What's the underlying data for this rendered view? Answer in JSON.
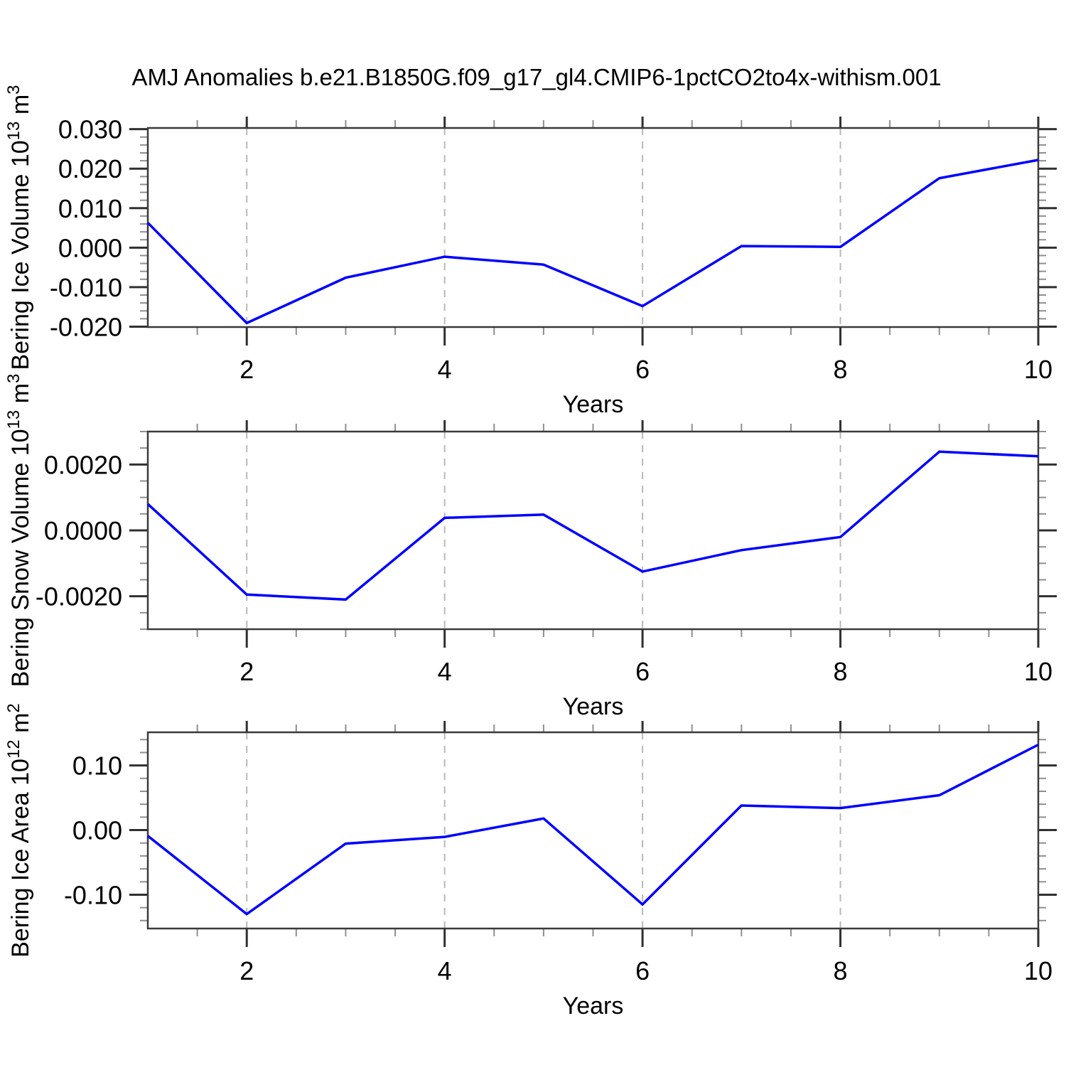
{
  "title": "AMJ Anomalies b.e21.B1850G.f09_g17_gl4.CMIP6-1pctCO2to4x-withism.001",
  "colors": {
    "line": "#0000ff",
    "gridline": "#b8b8b8",
    "frame": "#3a3a3a",
    "major_tick": "#303030",
    "minor_tick": "#8f8f8f",
    "text": "#000000",
    "background": "#ffffff"
  },
  "x_axis": {
    "label": "Years",
    "min": 1,
    "max": 10,
    "major_ticks": [
      2,
      4,
      6,
      8,
      10
    ],
    "tick_labels": [
      "2",
      "4",
      "6",
      "8",
      "10"
    ],
    "minor_step": 0.5,
    "gridlines": [
      2,
      4,
      6,
      8
    ]
  },
  "chart_data": [
    {
      "id": "bering-ice-volume",
      "type": "line",
      "ylabel": "Bering Ice Volume 10^13 m^3",
      "ylabel_parts": [
        {
          "t": "Bering Ice Volume 10"
        },
        {
          "t": "13",
          "sup": true
        },
        {
          "t": " m"
        },
        {
          "t": "3",
          "sup": true
        }
      ],
      "xlabel": "Years",
      "x": [
        1,
        2,
        3,
        4,
        5,
        6,
        7,
        8,
        9,
        10
      ],
      "y": [
        0.0063,
        -0.0191,
        -0.0076,
        -0.0023,
        -0.0043,
        -0.0148,
        0.0004,
        0.0002,
        0.0176,
        0.0222
      ],
      "ylim": [
        -0.0201,
        0.0303
      ],
      "yticks": [
        {
          "v": 0.03,
          "label": "0.030"
        },
        {
          "v": 0.02,
          "label": "0.020"
        },
        {
          "v": 0.01,
          "label": "0.010"
        },
        {
          "v": 0.0,
          "label": "0.000"
        },
        {
          "v": -0.01,
          "label": "-0.010"
        },
        {
          "v": -0.02,
          "label": "-0.020"
        }
      ],
      "yminor_step": 0.002
    },
    {
      "id": "bering-snow-volume",
      "type": "line",
      "ylabel": "Bering Snow Volume 10^13 m^3",
      "ylabel_parts": [
        {
          "t": "Bering Snow Volume 10"
        },
        {
          "t": "13",
          "sup": true
        },
        {
          "t": " m"
        },
        {
          "t": "3",
          "sup": true
        }
      ],
      "xlabel": "Years",
      "x": [
        1,
        2,
        3,
        4,
        5,
        6,
        7,
        8,
        9,
        10
      ],
      "y": [
        0.0008,
        -0.00195,
        -0.0021,
        0.00038,
        0.00048,
        -0.00125,
        -0.0006,
        -0.0002,
        0.00239,
        0.00225
      ],
      "ylim": [
        -0.003,
        0.003
      ],
      "yticks": [
        {
          "v": 0.002,
          "label": "0.0020"
        },
        {
          "v": 0.0,
          "label": "0.0000"
        },
        {
          "v": -0.002,
          "label": "-0.0020"
        }
      ],
      "yminor_step": 0.0005
    },
    {
      "id": "bering-ice-area",
      "type": "line",
      "ylabel": "Bering Ice Area 10^12 m^2",
      "ylabel_parts": [
        {
          "t": "Bering Ice Area 10"
        },
        {
          "t": "12",
          "sup": true
        },
        {
          "t": " m"
        },
        {
          "t": "2",
          "sup": true
        }
      ],
      "xlabel": "Years",
      "x": [
        1,
        2,
        3,
        4,
        5,
        6,
        7,
        8,
        9,
        10
      ],
      "y": [
        -0.009,
        -0.13,
        -0.021,
        -0.0105,
        0.018,
        -0.115,
        0.038,
        0.034,
        0.054,
        0.132
      ],
      "ylim": [
        -0.1523,
        0.1513
      ],
      "yticks": [
        {
          "v": 0.1,
          "label": "0.10"
        },
        {
          "v": 0.0,
          "label": "0.00"
        },
        {
          "v": -0.1,
          "label": "-0.10"
        }
      ],
      "yminor_step": 0.02
    }
  ]
}
